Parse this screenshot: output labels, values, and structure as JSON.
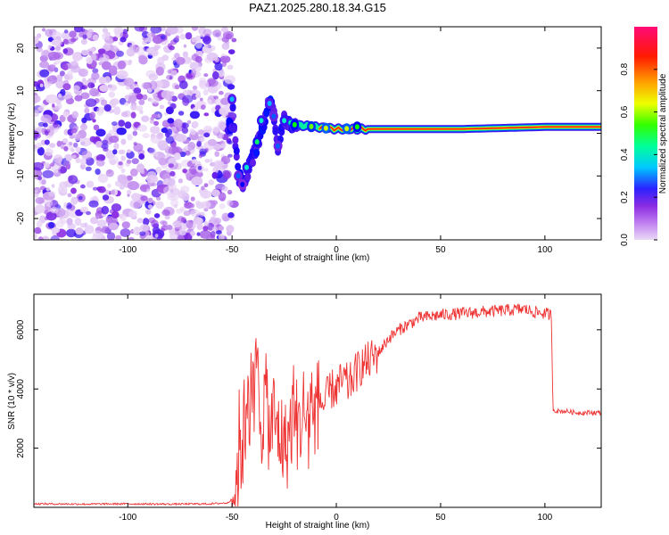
{
  "title": "PAZ1.2025.280.18.34.G15",
  "chart_data": [
    {
      "type": "heatmap",
      "title": "PAZ1.2025.280.18.34.G15",
      "xlabel": "Height of straight line (km)",
      "ylabel": "Frequency (Hz)",
      "xlim": [
        -145,
        127
      ],
      "ylim": [
        -25,
        25
      ],
      "x_ticks": [
        -100,
        -50,
        0,
        50,
        100
      ],
      "y_ticks": [
        -20,
        -10,
        0,
        10,
        20
      ],
      "x_tick_labels": [
        "-100",
        "-50",
        "0",
        "50",
        "100"
      ],
      "y_tick_labels": [
        "-20",
        "-10",
        "0",
        "10",
        "20"
      ],
      "colorbar": {
        "label": "Normalized spectral amplitude",
        "range": [
          0,
          1
        ],
        "ticks": [
          0.0,
          0.2,
          0.4,
          0.6,
          0.8
        ],
        "tick_labels": [
          "0.0",
          "0.2",
          "0.4",
          "0.6",
          "0.8"
        ],
        "colors": [
          "#e9d4f6",
          "#8a2be2",
          "#0000ff",
          "#00e5ff",
          "#00ff00",
          "#ffff00",
          "#ff8000",
          "#ff0000",
          "#ff1493"
        ]
      },
      "noise_region_km": [
        -145,
        -53
      ],
      "signal_ridge": {
        "description": "Frequency ridge converges to ~1 Hz above about -20 km",
        "points_km_hz": [
          [
            -50,
            8
          ],
          [
            -47,
            -10
          ],
          [
            -44,
            -12
          ],
          [
            -42,
            -8
          ],
          [
            -38,
            -3
          ],
          [
            -35,
            2
          ],
          [
            -32,
            8
          ],
          [
            -30,
            5
          ],
          [
            -28,
            -3
          ],
          [
            -25,
            3
          ],
          [
            -20,
            2
          ],
          [
            -10,
            1.5
          ],
          [
            0,
            1
          ],
          [
            20,
            1
          ],
          [
            60,
            1
          ],
          [
            100,
            1.5
          ],
          [
            127,
            1.5
          ]
        ]
      }
    },
    {
      "type": "line",
      "xlabel": "Height of straight line (km)",
      "ylabel": "SNR (10 * v/v)",
      "xlim": [
        -145,
        127
      ],
      "ylim": [
        0,
        7200
      ],
      "x_ticks": [
        -100,
        -50,
        0,
        50,
        100
      ],
      "y_ticks": [
        2000,
        4000,
        6000
      ],
      "x_tick_labels": [
        "-100",
        "-50",
        "0",
        "50",
        "100"
      ],
      "y_tick_labels": [
        "2000",
        "4000",
        "6000"
      ],
      "color": "#ee3333",
      "series": [
        {
          "name": "SNR",
          "x": [
            -145,
            -120,
            -100,
            -80,
            -60,
            -52,
            -50,
            -48,
            -46,
            -44,
            -42,
            -40,
            -38,
            -36,
            -34,
            -32,
            -30,
            -28,
            -26,
            -24,
            -22,
            -20,
            -18,
            -16,
            -14,
            -12,
            -10,
            -8,
            -6,
            -4,
            -2,
            0,
            2,
            4,
            6,
            8,
            10,
            12,
            15,
            20,
            25,
            30,
            35,
            40,
            50,
            60,
            70,
            80,
            90,
            95,
            100,
            103,
            104,
            106,
            110,
            115,
            120,
            127
          ],
          "y": [
            120,
            110,
            120,
            110,
            120,
            150,
            300,
            900,
            1800,
            3000,
            4500,
            3500,
            4800,
            2800,
            3800,
            2500,
            3000,
            2600,
            2300,
            2000,
            2700,
            3300,
            2500,
            3400,
            2800,
            3600,
            3200,
            3700,
            3400,
            3800,
            4000,
            4000,
            4200,
            4300,
            4100,
            4400,
            4600,
            4800,
            4900,
            5200,
            5700,
            6000,
            6200,
            6400,
            6500,
            6550,
            6600,
            6650,
            6700,
            6600,
            6550,
            6500,
            3300,
            3250,
            3250,
            3200,
            3200,
            3200
          ]
        }
      ]
    }
  ]
}
